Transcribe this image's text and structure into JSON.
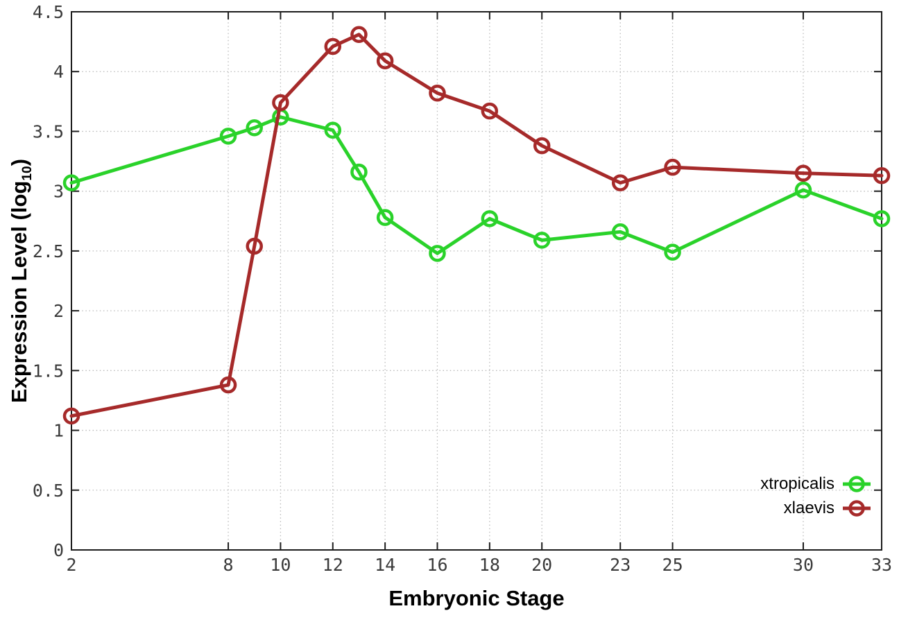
{
  "chart_data": {
    "type": "line",
    "xlabel": "Embryonic Stage",
    "ylabel_prefix": "Expression Level (log",
    "ylabel_sub": "10",
    "ylabel_suffix": ")",
    "x": [
      2,
      8,
      9,
      10,
      12,
      13,
      14,
      16,
      18,
      20,
      23,
      25,
      30,
      33
    ],
    "series": [
      {
        "name": "xtropicalis",
        "color": "#2ad22a",
        "values": [
          3.07,
          3.46,
          3.53,
          3.62,
          3.51,
          3.16,
          2.78,
          2.48,
          2.77,
          2.59,
          2.66,
          2.49,
          3.01,
          2.77
        ]
      },
      {
        "name": "xlaevis",
        "color": "#a62a2a",
        "values": [
          1.12,
          1.38,
          2.54,
          3.74,
          4.21,
          4.31,
          4.09,
          3.82,
          3.67,
          3.38,
          3.07,
          3.2,
          3.15,
          3.13
        ]
      }
    ],
    "xticks": [
      2,
      8,
      10,
      12,
      14,
      16,
      18,
      20,
      23,
      25,
      30,
      33
    ],
    "yticks": [
      0,
      0.5,
      1,
      1.5,
      2,
      2.5,
      3,
      3.5,
      4,
      4.5
    ],
    "xlim": [
      2,
      33
    ],
    "ylim": [
      0,
      4.5
    ],
    "grid": true,
    "marker": "open-circle",
    "legend_position": "bottom-right",
    "colors": {
      "axis": "#1c1c1c",
      "grid": "#b9b9b9",
      "tick_label": "#3a3a3a",
      "title": "#000000"
    }
  }
}
